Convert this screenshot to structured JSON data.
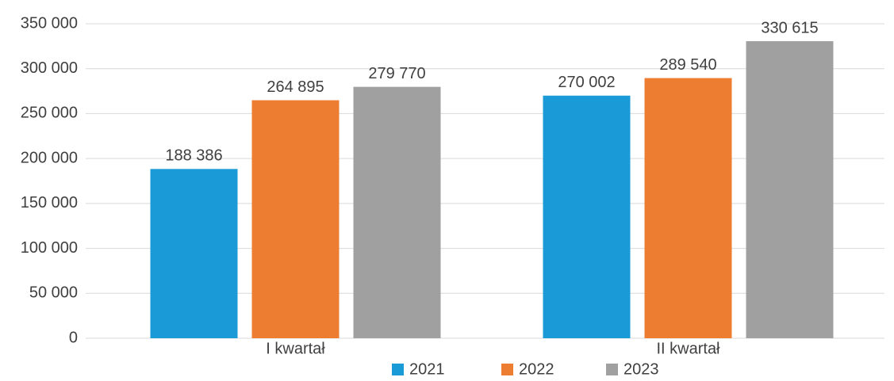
{
  "chart_data": {
    "type": "bar",
    "categories": [
      "I kwartał",
      "II kwartał"
    ],
    "series": [
      {
        "name": "2021",
        "color": "#1a9bd7",
        "values": [
          188386,
          270002
        ],
        "value_labels": [
          "188 386",
          "270 002"
        ]
      },
      {
        "name": "2022",
        "color": "#ed7d31",
        "values": [
          264895,
          289540
        ],
        "value_labels": [
          "264 895",
          "289 540"
        ]
      },
      {
        "name": "2023",
        "color": "#a0a0a0",
        "values": [
          279770,
          330615
        ],
        "value_labels": [
          "279 770",
          "330 615"
        ]
      }
    ],
    "ylim": [
      0,
      350000
    ],
    "yticks": [
      0,
      {
        "value": 50000,
        "label": "50 000"
      },
      {
        "value": 100000,
        "label": "100 000"
      },
      {
        "value": 150000,
        "label": "150 000"
      },
      {
        "value": 200000,
        "label": "200 000"
      },
      {
        "value": 250000,
        "label": "250 000"
      },
      {
        "value": 300000,
        "label": "300 000"
      },
      {
        "value": 350000,
        "label": "350 000"
      }
    ],
    "grid": true,
    "legend": "bottom"
  }
}
